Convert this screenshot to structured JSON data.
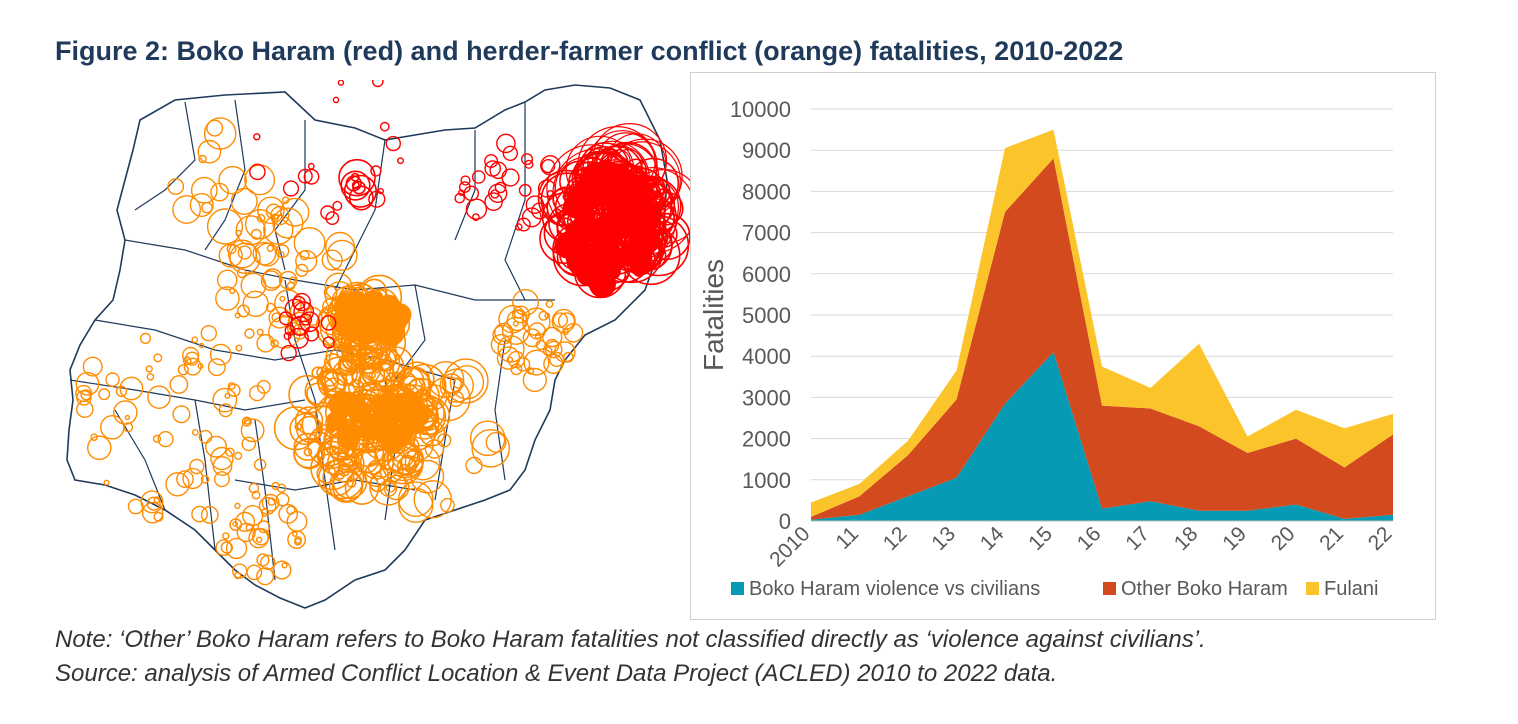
{
  "title": "Figure 2: Boko Haram (red) and herder-farmer conflict (orange) fatalities, 2010-2022",
  "map": {
    "description_colors": {
      "boko_haram": "#ff0000",
      "herder_farmer": "#ff8c00",
      "border": "#1f3a5a"
    }
  },
  "chart_data": {
    "type": "area",
    "stacked": true,
    "categories": [
      "2010",
      "11",
      "12",
      "13",
      "14",
      "15",
      "16",
      "17",
      "18",
      "19",
      "20",
      "21",
      "22"
    ],
    "series": [
      {
        "name": "Boko Haram violence vs civilians",
        "color": "#069ab5",
        "values": [
          30,
          150,
          600,
          1050,
          2850,
          4100,
          300,
          480,
          250,
          250,
          400,
          50,
          150
        ]
      },
      {
        "name": "Other Boko Haram",
        "color": "#d24a1e",
        "values": [
          70,
          450,
          1000,
          1900,
          4650,
          4700,
          2500,
          2250,
          2050,
          1400,
          1600,
          1250,
          1950
        ]
      },
      {
        "name": "Fulani",
        "color": "#fcc42b",
        "values": [
          350,
          300,
          350,
          700,
          1550,
          700,
          950,
          500,
          2000,
          400,
          700,
          950,
          500
        ]
      }
    ],
    "ylabel": "Fatalities",
    "xlabel": "",
    "ylim": [
      0,
      10000
    ],
    "yticks": [
      0,
      1000,
      2000,
      3000,
      4000,
      5000,
      6000,
      7000,
      8000,
      9000,
      10000
    ],
    "grid": true,
    "legend": "bottom"
  },
  "notes": {
    "line1": "Note: ‘Other’ Boko Haram refers to Boko Haram fatalities not classified directly as ‘violence against civilians’.",
    "line2": "Source: analysis of Armed Conflict Location & Event Data Project (ACLED) 2010 to 2022 data."
  }
}
